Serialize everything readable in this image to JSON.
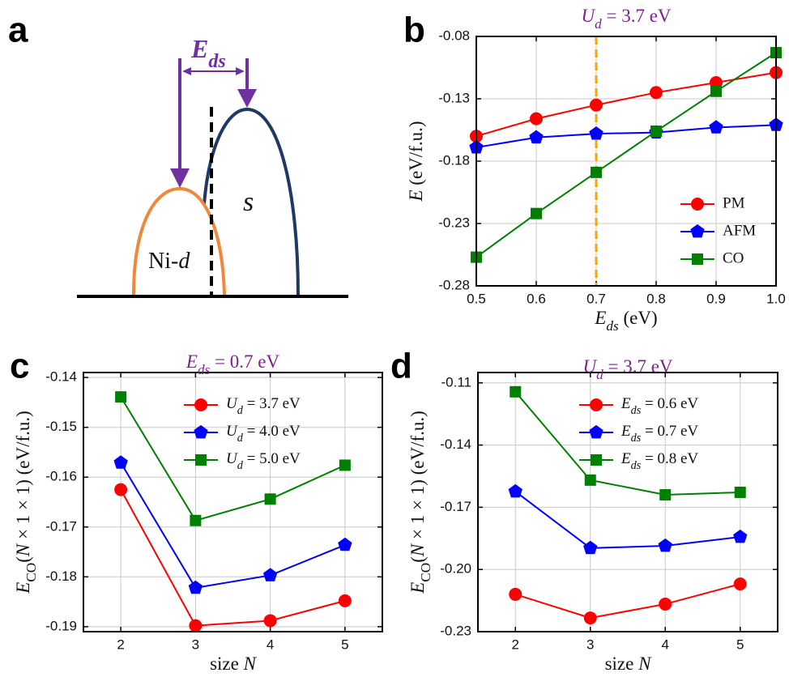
{
  "schematic": {
    "panel_label": "a",
    "gap_label": "Eds",
    "d_band_label": "Ni-d",
    "s_band_label": "s"
  },
  "chart_data": [
    {
      "type": "line",
      "panel_label": "b",
      "title": "Ud = 3.7 eV",
      "title_color": "#7f1f8f",
      "xlabel": "Eds (eV)",
      "ylabel": "E (eV/f.u.)",
      "x": [
        0.5,
        0.6,
        0.7,
        0.8,
        0.9,
        1.0
      ],
      "xlim": [
        0.5,
        1.0
      ],
      "xticks": [
        0.5,
        0.6,
        0.7,
        0.8,
        0.9,
        {
          "value": 1.0,
          "label": "1.0"
        }
      ],
      "ylim": [
        -0.28,
        -0.08
      ],
      "yticks": [
        -0.28,
        -0.23,
        -0.18,
        -0.13,
        -0.08
      ],
      "grid": true,
      "legend": "lower right",
      "vline": {
        "x": 0.7,
        "color": "#ffa500"
      },
      "series": [
        {
          "name": "PM",
          "color": "#ff0000",
          "marker": "circle",
          "values": [
            -0.16,
            -0.146,
            -0.135,
            -0.125,
            -0.117,
            -0.109
          ]
        },
        {
          "name": "AFM",
          "color": "#0000ff",
          "marker": "pentagon",
          "values": [
            -0.169,
            -0.161,
            -0.158,
            -0.157,
            -0.153,
            -0.151
          ]
        },
        {
          "name": "CO",
          "color": "#008000",
          "marker": "square",
          "values": [
            -0.257,
            -0.222,
            -0.189,
            -0.156,
            -0.124,
            -0.093
          ]
        }
      ]
    },
    {
      "type": "line",
      "panel_label": "c",
      "title": "Eds = 0.7 eV",
      "title_color": "#7f1f8f",
      "xlabel": "size N",
      "ylabel": "ECO(N × 1 × 1) (eV/f.u.)",
      "x": [
        2,
        3,
        4,
        5
      ],
      "xlim": [
        1.5,
        5.5
      ],
      "xticks": [
        2,
        3,
        4,
        5
      ],
      "ylim": [
        -0.191,
        -0.139
      ],
      "yticks": [
        -0.19,
        -0.18,
        -0.17,
        -0.16,
        -0.15,
        -0.14
      ],
      "grid": true,
      "legend": "upper right",
      "series": [
        {
          "name": "Ud = 3.7 eV",
          "color": "#ff0000",
          "marker": "circle",
          "values": [
            -0.1625,
            -0.1898,
            -0.1888,
            -0.1848
          ]
        },
        {
          "name": "Ud = 4.0 eV",
          "color": "#0000ff",
          "marker": "pentagon",
          "values": [
            -0.1571,
            -0.1822,
            -0.1797,
            -0.1736
          ]
        },
        {
          "name": "Ud = 5.0 eV",
          "color": "#008000",
          "marker": "square",
          "values": [
            -0.1439,
            -0.1687,
            -0.1644,
            -0.1576
          ]
        }
      ]
    },
    {
      "type": "line",
      "panel_label": "d",
      "title": "Ud = 3.7 eV",
      "title_color": "#7f1f8f",
      "xlabel": "size N",
      "ylabel": "ECO(N × 1 × 1) (eV/f.u.)",
      "x": [
        2,
        3,
        4,
        5
      ],
      "xlim": [
        1.5,
        5.5
      ],
      "xticks": [
        2,
        3,
        4,
        5
      ],
      "ylim": [
        -0.23,
        -0.105
      ],
      "yticks": [
        -0.23,
        {
          "value": -0.2,
          "label": "-0.20"
        },
        -0.17,
        -0.14,
        -0.11
      ],
      "grid": true,
      "legend": "upper right",
      "series": [
        {
          "name": "Eds = 0.6 eV",
          "color": "#ff0000",
          "marker": "circle",
          "values": [
            -0.212,
            -0.2234,
            -0.2167,
            -0.207
          ]
        },
        {
          "name": "Eds = 0.7 eV",
          "color": "#0000ff",
          "marker": "pentagon",
          "values": [
            -0.1624,
            -0.1897,
            -0.1886,
            -0.1843
          ]
        },
        {
          "name": "Eds = 0.8 eV",
          "color": "#008000",
          "marker": "square",
          "values": [
            -0.1143,
            -0.1569,
            -0.164,
            -0.1628
          ]
        }
      ]
    }
  ]
}
